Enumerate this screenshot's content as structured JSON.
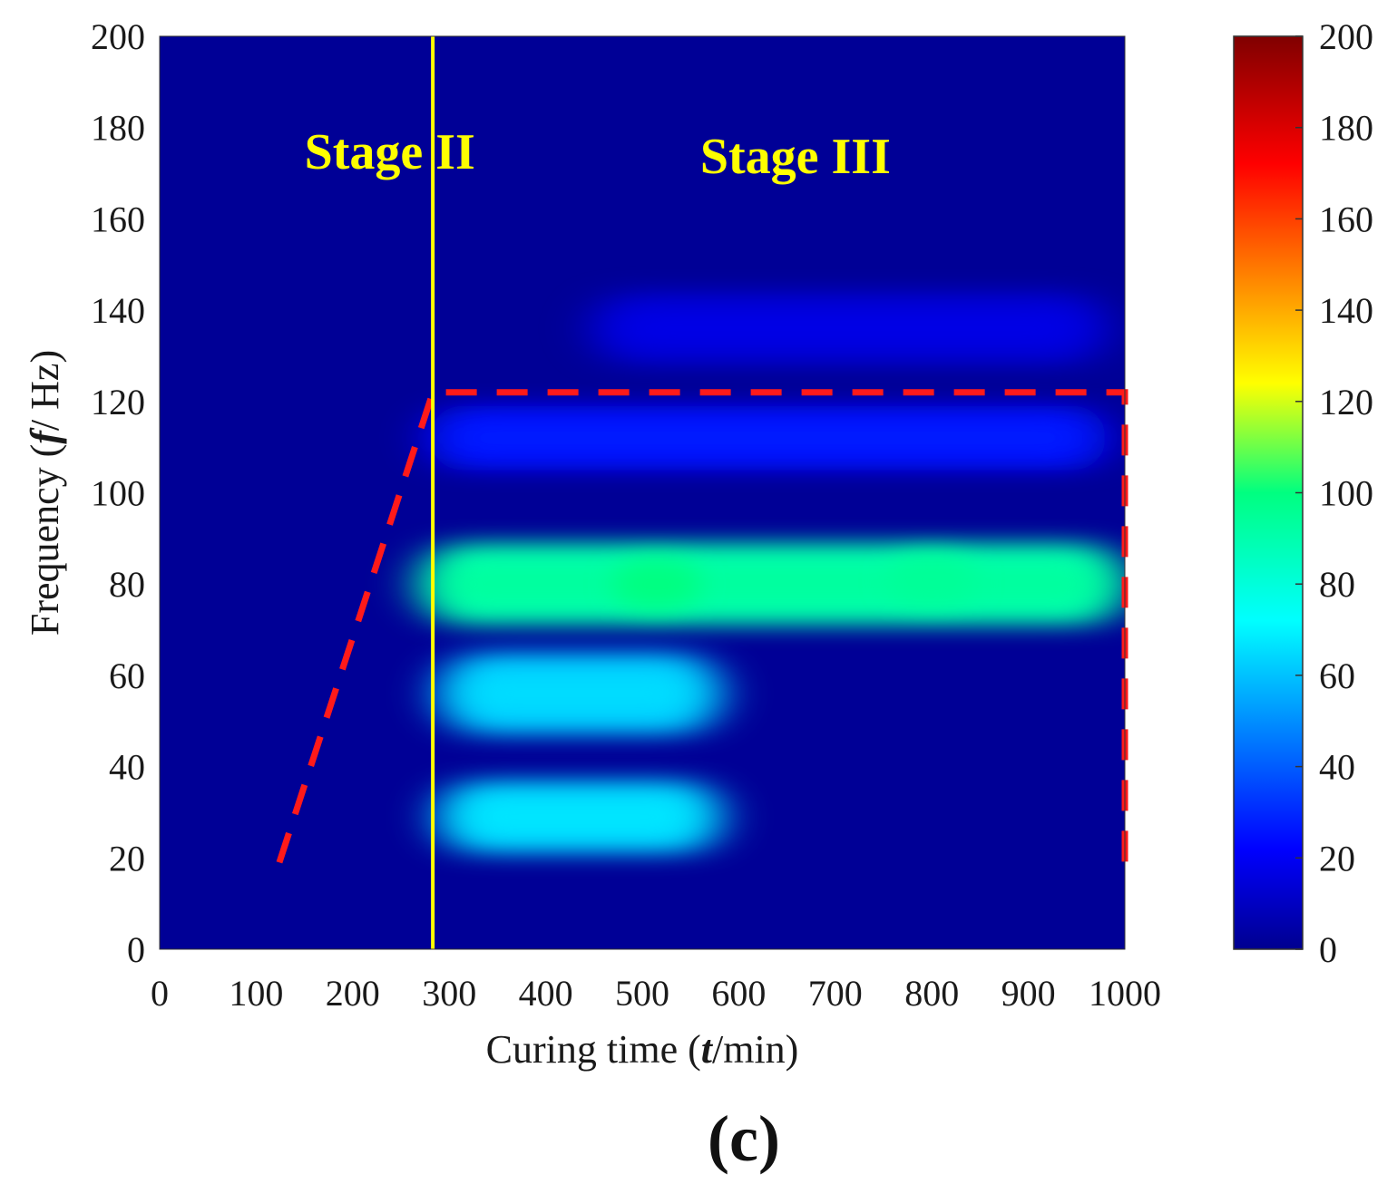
{
  "chart_data": {
    "type": "heatmap",
    "xlabel_parts": [
      "Curing time (",
      "t",
      "/min)"
    ],
    "ylabel_parts": [
      "Frequency (",
      "f",
      "/ Hz)"
    ],
    "xlim": [
      0,
      1000
    ],
    "ylim": [
      0,
      200
    ],
    "x_ticks": [
      "0",
      "100",
      "200",
      "300",
      "400",
      "500",
      "600",
      "700",
      "800",
      "900",
      "1000"
    ],
    "y_ticks": [
      "0",
      "20",
      "40",
      "60",
      "80",
      "100",
      "120",
      "140",
      "160",
      "180",
      "200"
    ],
    "colorbar": {
      "range": [
        0,
        200
      ],
      "ticks": [
        "0",
        "20",
        "40",
        "60",
        "80",
        "100",
        "120",
        "140",
        "160",
        "180",
        "200"
      ],
      "colormap": "jet"
    },
    "bands": [
      {
        "freq": 80,
        "x_start": 270,
        "x_end": 1000,
        "peak_value": 90,
        "width": 9
      },
      {
        "freq": 56,
        "x_start": 290,
        "x_end": 580,
        "peak_value": 62,
        "width": 9
      },
      {
        "freq": 29,
        "x_start": 290,
        "x_end": 580,
        "peak_value": 64,
        "width": 8
      },
      {
        "freq": 112,
        "x_start": 280,
        "x_end": 980,
        "peak_value": 24,
        "width": 7
      },
      {
        "freq": 136,
        "x_start": 450,
        "x_end": 980,
        "peak_value": 14,
        "width": 8
      }
    ],
    "hotspots": [
      {
        "x": 515,
        "freq": 80,
        "value": 100
      },
      {
        "x": 800,
        "freq": 81,
        "value": 95
      }
    ],
    "divider": {
      "x": 283,
      "color": "#ffff00"
    },
    "stage_labels": [
      {
        "text": "Stage II",
        "x": 150,
        "freq": 171
      },
      {
        "text": "Stage III",
        "x": 560,
        "freq": 170
      }
    ],
    "region_outline": {
      "points": [
        [
          124,
          19
        ],
        [
          283,
          122
        ],
        [
          1000,
          122
        ],
        [
          1000,
          19
        ]
      ],
      "color": "#ff1a1a",
      "style": "dashed"
    },
    "panel_label": "(c)",
    "colors": {
      "background": "#000096",
      "stage_text": "#ffff00",
      "divider": "#ffff00",
      "outline": "#ff1a1a"
    }
  }
}
